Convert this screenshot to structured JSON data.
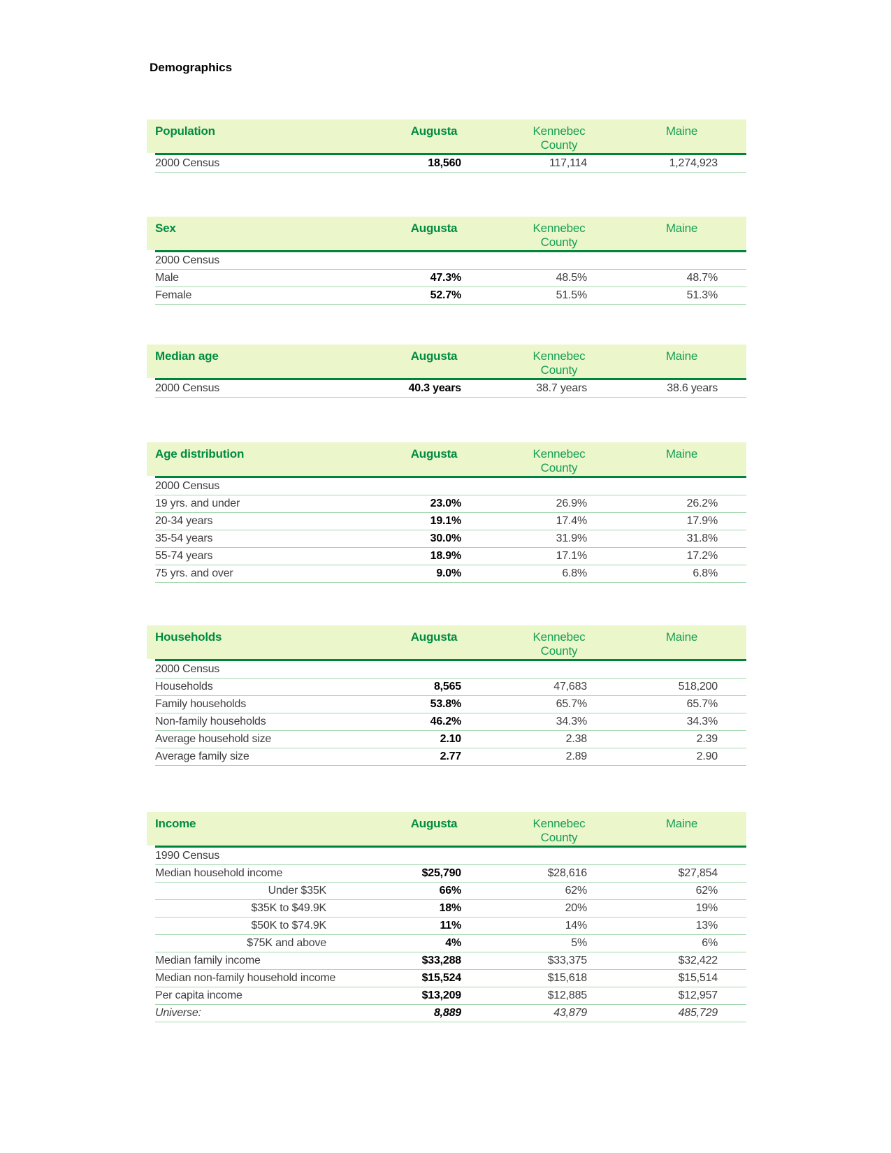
{
  "page": {
    "title": "Demographics"
  },
  "columns": {
    "augusta": "Augusta",
    "county": "Kennebec\nCounty",
    "maine": "Maine"
  },
  "tables": {
    "population": {
      "title": "Population",
      "rows": [
        {
          "label": "2000 Census",
          "augusta": "18,560",
          "county": "117,114",
          "maine": "1,274,923"
        }
      ]
    },
    "sex": {
      "title": "Sex",
      "rows": [
        {
          "label": "2000 Census",
          "augusta": "",
          "county": "",
          "maine": ""
        },
        {
          "label": "Male",
          "augusta": "47.3%",
          "county": "48.5%",
          "maine": "48.7%"
        },
        {
          "label": "Female",
          "augusta": "52.7%",
          "county": "51.5%",
          "maine": "51.3%"
        }
      ]
    },
    "median_age": {
      "title": "Median age",
      "rows": [
        {
          "label": "2000 Census",
          "augusta": "40.3 years",
          "county": "38.7 years",
          "maine": "38.6 years"
        }
      ]
    },
    "age_distribution": {
      "title": "Age distribution",
      "rows": [
        {
          "label": "2000 Census",
          "augusta": "",
          "county": "",
          "maine": ""
        },
        {
          "label": "19 yrs. and under",
          "augusta": "23.0%",
          "county": "26.9%",
          "maine": "26.2%"
        },
        {
          "label": "20-34 years",
          "augusta": "19.1%",
          "county": "17.4%",
          "maine": "17.9%"
        },
        {
          "label": "35-54 years",
          "augusta": "30.0%",
          "county": "31.9%",
          "maine": "31.8%"
        },
        {
          "label": "55-74 years",
          "augusta": "18.9%",
          "county": "17.1%",
          "maine": "17.2%"
        },
        {
          "label": "75 yrs. and over",
          "augusta": "9.0%",
          "county": "6.8%",
          "maine": "6.8%"
        }
      ]
    },
    "households": {
      "title": "Households",
      "rows": [
        {
          "label": "2000 Census",
          "augusta": "",
          "county": "",
          "maine": ""
        },
        {
          "label": "Households",
          "augusta": "8,565",
          "county": "47,683",
          "maine": "518,200"
        },
        {
          "label": "Family households",
          "augusta": "53.8%",
          "county": "65.7%",
          "maine": "65.7%"
        },
        {
          "label": "Non-family households",
          "augusta": "46.2%",
          "county": "34.3%",
          "maine": "34.3%"
        },
        {
          "label": "Average household size",
          "augusta": "2.10",
          "county": "2.38",
          "maine": "2.39"
        },
        {
          "label": "Average family size",
          "augusta": "2.77",
          "county": "2.89",
          "maine": "2.90"
        }
      ]
    },
    "income": {
      "title": "Income",
      "rows": [
        {
          "label": "1990 Census",
          "augusta": "",
          "county": "",
          "maine": ""
        },
        {
          "label": "Median household income",
          "augusta": "$25,790",
          "county": "$28,616",
          "maine": "$27,854"
        },
        {
          "label": "Under $35K",
          "augusta": "66%",
          "county": "62%",
          "maine": "62%"
        },
        {
          "label": "$35K to $49.9K",
          "augusta": "18%",
          "county": "20%",
          "maine": "19%"
        },
        {
          "label": "$50K to $74.9K",
          "augusta": "11%",
          "county": "14%",
          "maine": "13%"
        },
        {
          "label": "$75K and above",
          "augusta": "4%",
          "county": "5%",
          "maine": "6%"
        },
        {
          "label": "Median family income",
          "augusta": "$33,288",
          "county": "$33,375",
          "maine": "$32,422"
        },
        {
          "label": "Median non-family household income",
          "augusta": "$15,524",
          "county": "$15,618",
          "maine": "$15,514"
        },
        {
          "label": "Per capita income",
          "augusta": "$13,209",
          "county": "$12,885",
          "maine": "$12,957"
        },
        {
          "label": "Universe:",
          "augusta": "8,889",
          "county": "43,879",
          "maine": "485,729"
        }
      ]
    }
  }
}
